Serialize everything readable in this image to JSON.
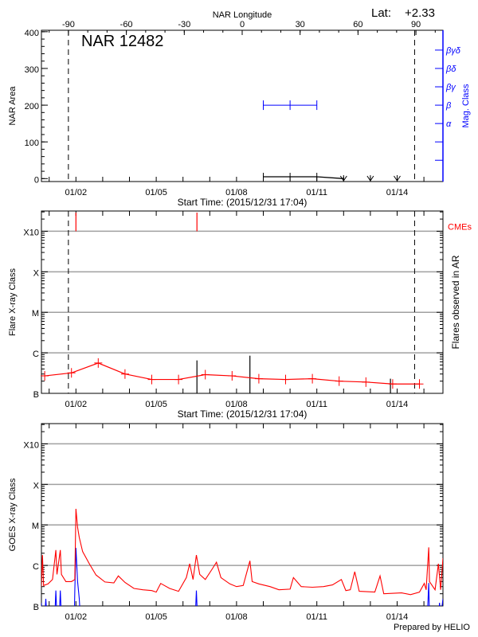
{
  "header": {
    "lat_label": "Lat:",
    "lat_value": "+2.33",
    "prepared_by": "Prepared by HELIO"
  },
  "colors": {
    "axis": "#000000",
    "grid": "#a0a0a0",
    "mag_class": "#0000ff",
    "flare": "#ff0000",
    "cme": "#ff0000",
    "goes_long": "#ff0000",
    "goes_short": "#0000ff"
  },
  "chart_data": [
    {
      "type": "line",
      "title": "NAR 12482",
      "xlabel": "Start Time: (2015/12/31 17:04)",
      "ylabel": "NAR Area",
      "y2label": "Mag. Class",
      "top_xlabel": "NAR Longitude",
      "xlim": [
        "2015-12-31 17:04",
        "2016-01-15 17:04"
      ],
      "x_tick_labels": [
        {
          "date": "2016-01-02 00:00",
          "label": "01/02"
        },
        {
          "date": "2016-01-05 00:00",
          "label": "01/05"
        },
        {
          "date": "2016-01-08 00:00",
          "label": "01/08"
        },
        {
          "date": "2016-01-11 00:00",
          "label": "01/11"
        },
        {
          "date": "2016-01-14 00:00",
          "label": "01/14"
        }
      ],
      "ylim": [
        -8,
        404
      ],
      "y_ticks": [
        {
          "value": 0,
          "label": "0"
        },
        {
          "value": 100,
          "label": "100"
        },
        {
          "value": 200,
          "label": "200"
        },
        {
          "value": 300,
          "label": "300"
        },
        {
          "value": 400,
          "label": "400"
        }
      ],
      "top_axis": {
        "range": [
          -104,
          104
        ],
        "ticks": [
          {
            "value": -90,
            "label": "-90"
          },
          {
            "value": -60,
            "label": "-60"
          },
          {
            "value": -30,
            "label": "-30"
          },
          {
            "value": 0,
            "label": "0"
          },
          {
            "value": 30,
            "label": "30"
          },
          {
            "value": 60,
            "label": "60"
          },
          {
            "value": 90,
            "label": "90"
          }
        ]
      },
      "y2_ticks": [
        {
          "value": 350,
          "label": "βγδ"
        },
        {
          "value": 300,
          "label": "βδ"
        },
        {
          "value": 250,
          "label": "βγ"
        },
        {
          "value": 200,
          "label": "β"
        },
        {
          "value": 150,
          "label": "α"
        },
        {
          "value": 100,
          "label": ""
        },
        {
          "value": 50,
          "label": ""
        }
      ],
      "limb_lines": [
        "2016-01-01 17:15",
        "2016-01-14 15:40"
      ],
      "area": [
        [
          "2016-01-09 00:00",
          5
        ],
        [
          "2016-01-10 00:00",
          5
        ],
        [
          "2016-01-11 00:00",
          5
        ],
        [
          "2016-01-12 00:00",
          0
        ]
      ],
      "area_no_data": [
        "2016-01-12 00:00",
        "2016-01-13 00:00",
        "2016-01-14 00:00"
      ],
      "mag_class": [
        [
          "2016-01-09 00:00",
          "β"
        ],
        [
          "2016-01-10 00:00",
          "β"
        ],
        [
          "2016-01-11 00:00",
          "β"
        ]
      ]
    },
    {
      "type": "line",
      "xlabel": "Start Time: (2015/12/31 17:04)",
      "ylabel": "Flare X-ray Class",
      "y2label": "Flares observed in AR",
      "cme_label": "CMEs",
      "xlim": [
        "2015-12-31 17:04",
        "2016-01-15 17:04"
      ],
      "x_tick_labels": [
        {
          "date": "2016-01-02 00:00",
          "label": "01/02"
        },
        {
          "date": "2016-01-05 00:00",
          "label": "01/05"
        },
        {
          "date": "2016-01-08 00:00",
          "label": "01/08"
        },
        {
          "date": "2016-01-11 00:00",
          "label": "01/11"
        },
        {
          "date": "2016-01-14 00:00",
          "label": "01/14"
        }
      ],
      "yscale": "log",
      "ylim": [
        1e-07,
        0.00316
      ],
      "y_ticks": [
        {
          "value": 1e-07,
          "label": "B"
        },
        {
          "value": 1e-06,
          "label": "C"
        },
        {
          "value": 1e-05,
          "label": "M"
        },
        {
          "value": 0.0001,
          "label": "X"
        },
        {
          "value": 0.001,
          "label": "X10"
        }
      ],
      "grid": true,
      "limb_lines": [
        "2016-01-01 17:15",
        "2016-01-14 15:40"
      ],
      "flares": [
        [
          "2015-12-31 20:00",
          2.7e-07
        ],
        [
          "2016-01-01 20:00",
          3.2e-07
        ],
        [
          "2016-01-02 20:00",
          5.6e-07
        ],
        [
          "2016-01-03 20:00",
          3e-07
        ],
        [
          "2016-01-04 20:00",
          2.2e-07
        ],
        [
          "2016-01-05 20:00",
          2.2e-07
        ],
        [
          "2016-01-06 20:00",
          2.9e-07
        ],
        [
          "2016-01-07 20:00",
          2.7e-07
        ],
        [
          "2016-01-08 20:00",
          2.3e-07
        ],
        [
          "2016-01-09 20:00",
          2.2e-07
        ],
        [
          "2016-01-10 20:00",
          2.3e-07
        ],
        [
          "2016-01-11 20:00",
          2e-07
        ],
        [
          "2016-01-12 20:00",
          1.9e-07
        ],
        [
          "2016-01-13 20:00",
          1.7e-07
        ],
        [
          "2016-01-14 20:00",
          1.7e-07
        ]
      ],
      "cmes": [
        "2016-01-02 00:00",
        "2016-01-06 12:30"
      ],
      "observed_flares": [
        [
          "2016-01-06 12:30",
          6.5e-07
        ],
        [
          "2016-01-08 12:00",
          8.5e-07
        ],
        [
          "2016-01-13 18:00",
          2.3e-07
        ]
      ]
    },
    {
      "type": "line",
      "ylabel": "GOES X-ray Class",
      "xlim": [
        "2015-12-31 17:04",
        "2016-01-15 17:04"
      ],
      "x_tick_labels": [
        {
          "date": "2016-01-02 00:00",
          "label": "01/02"
        },
        {
          "date": "2016-01-05 00:00",
          "label": "01/05"
        },
        {
          "date": "2016-01-08 00:00",
          "label": "01/08"
        },
        {
          "date": "2016-01-11 00:00",
          "label": "01/11"
        },
        {
          "date": "2016-01-14 00:00",
          "label": "01/14"
        }
      ],
      "yscale": "log",
      "ylim": [
        1e-07,
        0.00316
      ],
      "y_ticks": [
        {
          "value": 1e-07,
          "label": "B"
        },
        {
          "value": 1e-06,
          "label": "C"
        },
        {
          "value": 1e-05,
          "label": "M"
        },
        {
          "value": 0.0001,
          "label": "X"
        },
        {
          "value": 0.001,
          "label": "X10"
        }
      ],
      "grid": true,
      "series": [
        {
          "color": "#ff0000",
          "points": [
            [
              "2015-12-31 17:04",
              3e-07
            ],
            [
              "2015-12-31 18:00",
              1.8e-06
            ],
            [
              "2015-12-31 19:00",
              3.2e-07
            ],
            [
              "2015-12-31 23:00",
              3.5e-07
            ],
            [
              "2016-01-01 03:00",
              4.5e-07
            ],
            [
              "2016-01-01 06:00",
              2.4e-06
            ],
            [
              "2016-01-01 07:00",
              6e-07
            ],
            [
              "2016-01-01 10:00",
              2.4e-06
            ],
            [
              "2016-01-01 11:00",
              6e-07
            ],
            [
              "2016-01-01 15:00",
              4e-07
            ],
            [
              "2016-01-01 20:00",
              4e-07
            ],
            [
              "2016-01-01 23:00",
              4.5e-07
            ],
            [
              "2016-01-02 00:00",
              2.5e-05
            ],
            [
              "2016-01-02 01:30",
              8.7e-06
            ],
            [
              "2016-01-02 03:00",
              4.9e-06
            ],
            [
              "2016-01-02 06:00",
              2.2e-06
            ],
            [
              "2016-01-02 12:00",
              1.1e-06
            ],
            [
              "2016-01-02 18:00",
              5.8e-07
            ],
            [
              "2016-01-03 02:00",
              3.9e-07
            ],
            [
              "2016-01-03 10:00",
              3.7e-07
            ],
            [
              "2016-01-03 14:00",
              5.5e-07
            ],
            [
              "2016-01-03 20:00",
              3.8e-07
            ],
            [
              "2016-01-04 04:00",
              2.7e-07
            ],
            [
              "2016-01-04 12:00",
              2.5e-07
            ],
            [
              "2016-01-04 20:00",
              2.4e-07
            ],
            [
              "2016-01-05 00:00",
              2.2e-07
            ],
            [
              "2016-01-05 04:00",
              3.6e-07
            ],
            [
              "2016-01-05 12:00",
              2.7e-07
            ],
            [
              "2016-01-05 20:00",
              2.3e-07
            ],
            [
              "2016-01-06 03:00",
              5e-07
            ],
            [
              "2016-01-06 06:00",
              1.1e-06
            ],
            [
              "2016-01-06 09:00",
              4.5e-07
            ],
            [
              "2016-01-06 12:00",
              1.8e-06
            ],
            [
              "2016-01-06 15:00",
              6e-07
            ],
            [
              "2016-01-06 20:00",
              4.5e-07
            ],
            [
              "2016-01-07 02:00",
              8e-07
            ],
            [
              "2016-01-07 06:00",
              1.2e-06
            ],
            [
              "2016-01-07 10:00",
              5e-07
            ],
            [
              "2016-01-07 18:00",
              3.5e-07
            ],
            [
              "2016-01-08 00:00",
              3e-07
            ],
            [
              "2016-01-08 06:00",
              3.2e-07
            ],
            [
              "2016-01-08 12:00",
              1.3e-06
            ],
            [
              "2016-01-08 14:00",
              4e-07
            ],
            [
              "2016-01-08 20:00",
              3.5e-07
            ],
            [
              "2016-01-09 06:00",
              3e-07
            ],
            [
              "2016-01-09 14:00",
              2.5e-07
            ],
            [
              "2016-01-10 00:00",
              2.6e-07
            ],
            [
              "2016-01-10 03:00",
              5e-07
            ],
            [
              "2016-01-10 10:00",
              3e-07
            ],
            [
              "2016-01-10 20:00",
              2.9e-07
            ],
            [
              "2016-01-11 06:00",
              3e-07
            ],
            [
              "2016-01-11 14:00",
              3.3e-07
            ],
            [
              "2016-01-11 22:00",
              4.5e-07
            ],
            [
              "2016-01-12 02:00",
              2.4e-07
            ],
            [
              "2016-01-12 06:00",
              2.5e-07
            ],
            [
              "2016-01-12 10:00",
              7e-07
            ],
            [
              "2016-01-12 14:00",
              2.3e-07
            ],
            [
              "2016-01-13 04:00",
              2.2e-07
            ],
            [
              "2016-01-13 08:40",
              5.5e-07
            ],
            [
              "2016-01-13 12:00",
              2e-07
            ],
            [
              "2016-01-14 04:00",
              2.1e-07
            ],
            [
              "2016-01-14 12:00",
              1.9e-07
            ],
            [
              "2016-01-14 20:00",
              2.2e-07
            ],
            [
              "2016-01-15 00:20",
              3.6e-07
            ],
            [
              "2016-01-15 02:00",
              2.5e-07
            ],
            [
              "2016-01-15 04:20",
              2.8e-06
            ],
            [
              "2016-01-15 05:00",
              4e-07
            ],
            [
              "2016-01-15 10:00",
              2.5e-07
            ],
            [
              "2016-01-15 13:00",
              1.1e-06
            ],
            [
              "2016-01-15 15:00",
              2.5e-07
            ],
            [
              "2016-01-15 17:04",
              1.5e-06
            ]
          ]
        },
        {
          "color": "#0000ff",
          "points": [
            [
              "2015-12-31 17:04",
              1.2e-07
            ],
            [
              "2015-12-31 17:30",
              5e-08
            ],
            [
              "2015-12-31 20:00",
              5e-08
            ],
            [
              "2015-12-31 21:00",
              1.5e-07
            ],
            [
              "2015-12-31 22:00",
              5e-08
            ],
            [
              "2016-01-01 05:00",
              5e-08
            ],
            [
              "2016-01-01 06:00",
              2.4e-07
            ],
            [
              "2016-01-01 07:00",
              5e-08
            ],
            [
              "2016-01-01 09:00",
              5e-08
            ],
            [
              "2016-01-01 10:00",
              2.4e-07
            ],
            [
              "2016-01-01 11:00",
              5e-08
            ],
            [
              "2016-01-01 22:30",
              5e-08
            ],
            [
              "2016-01-01 23:00",
              2.4e-07
            ],
            [
              "2016-01-02 00:00",
              2.7e-06
            ],
            [
              "2016-01-02 01:30",
              4e-07
            ],
            [
              "2016-01-02 03:00",
              1.5e-07
            ],
            [
              "2016-01-02 04:00",
              5e-08
            ],
            [
              "2016-01-06 11:00",
              5e-08
            ],
            [
              "2016-01-06 12:00",
              2.4e-07
            ],
            [
              "2016-01-06 13:00",
              5e-08
            ],
            [
              "2016-01-15 03:00",
              5e-08
            ],
            [
              "2016-01-15 04:20",
              3.7e-07
            ],
            [
              "2016-01-15 05:00",
              5e-08
            ],
            [
              "2016-01-15 13:00",
              5e-08
            ],
            [
              "2016-01-15 14:00",
              1.2e-07
            ],
            [
              "2016-01-15 15:00",
              5e-08
            ],
            [
              "2016-01-15 17:04",
              1.5e-07
            ]
          ]
        }
      ]
    }
  ]
}
